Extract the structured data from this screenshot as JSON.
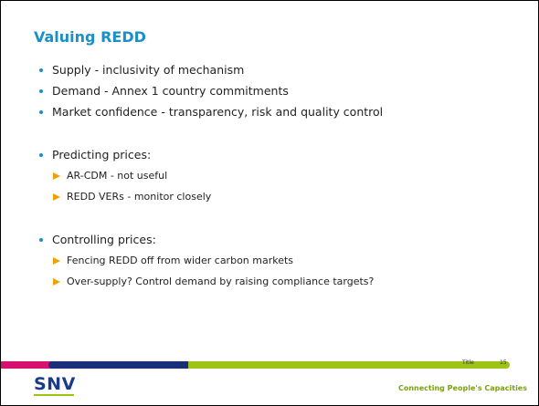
{
  "slide": {
    "title": "Valuing REDD",
    "groups": [
      {
        "items": [
          "Supply - inclusivity of mechanism",
          "Demand - Annex 1 country commitments",
          "Market confidence - transparency, risk and quality control"
        ],
        "subitems": []
      },
      {
        "items": [
          "Predicting prices:"
        ],
        "subitems": [
          "AR-CDM - not useful",
          "REDD VERs - monitor closely"
        ]
      },
      {
        "items": [
          "Controlling prices:"
        ],
        "subitems": [
          "Fencing REDD off from wider carbon markets",
          "Over-supply? Control demand by raising compliance targets?"
        ]
      }
    ],
    "footer": {
      "label": "Title",
      "page": "15",
      "logo": "SNV",
      "tagline": "Connecting People's Capacities"
    }
  }
}
